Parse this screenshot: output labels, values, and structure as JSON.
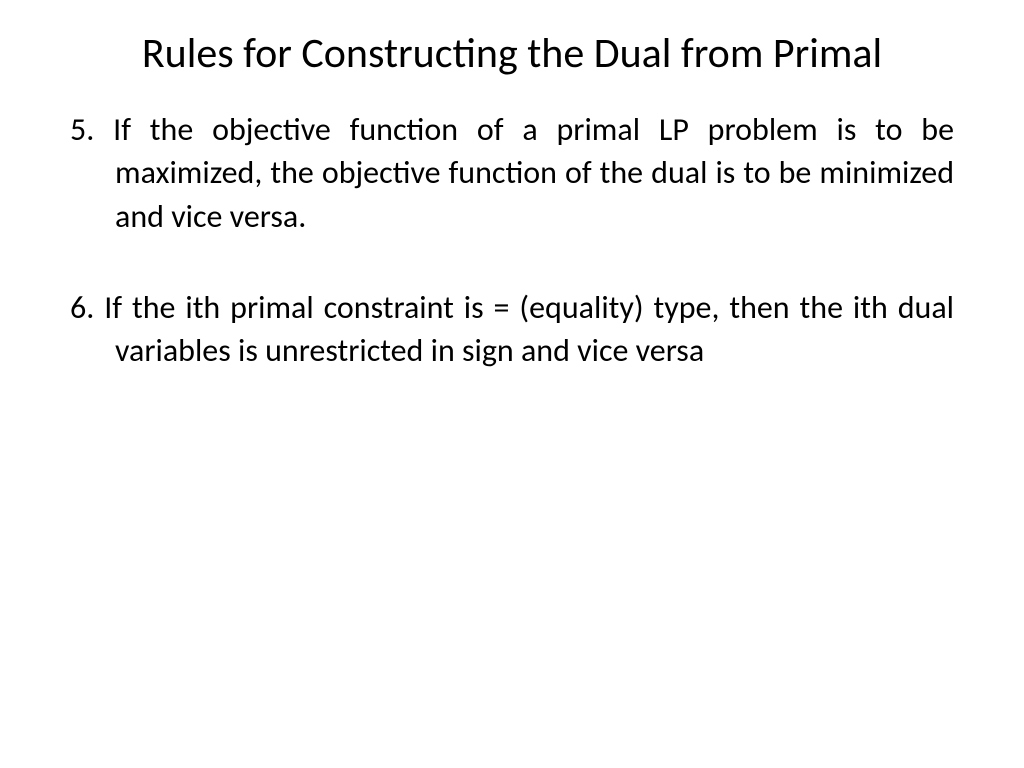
{
  "slide": {
    "title": "Rules for Constructing the Dual from Primal",
    "rules": [
      {
        "number": "5.",
        "text": "If the objective function of a primal LP problem is to be maximized, the objective function of the dual is to be minimized and vice versa."
      },
      {
        "number": "6.",
        "text": "If the ith primal constraint is = (equality) type, then the ith dual variables is unrestricted in sign and vice versa"
      }
    ],
    "background_color": "#ffffff",
    "text_color": "#000000",
    "title_fontsize": 42,
    "body_fontsize": 32
  }
}
